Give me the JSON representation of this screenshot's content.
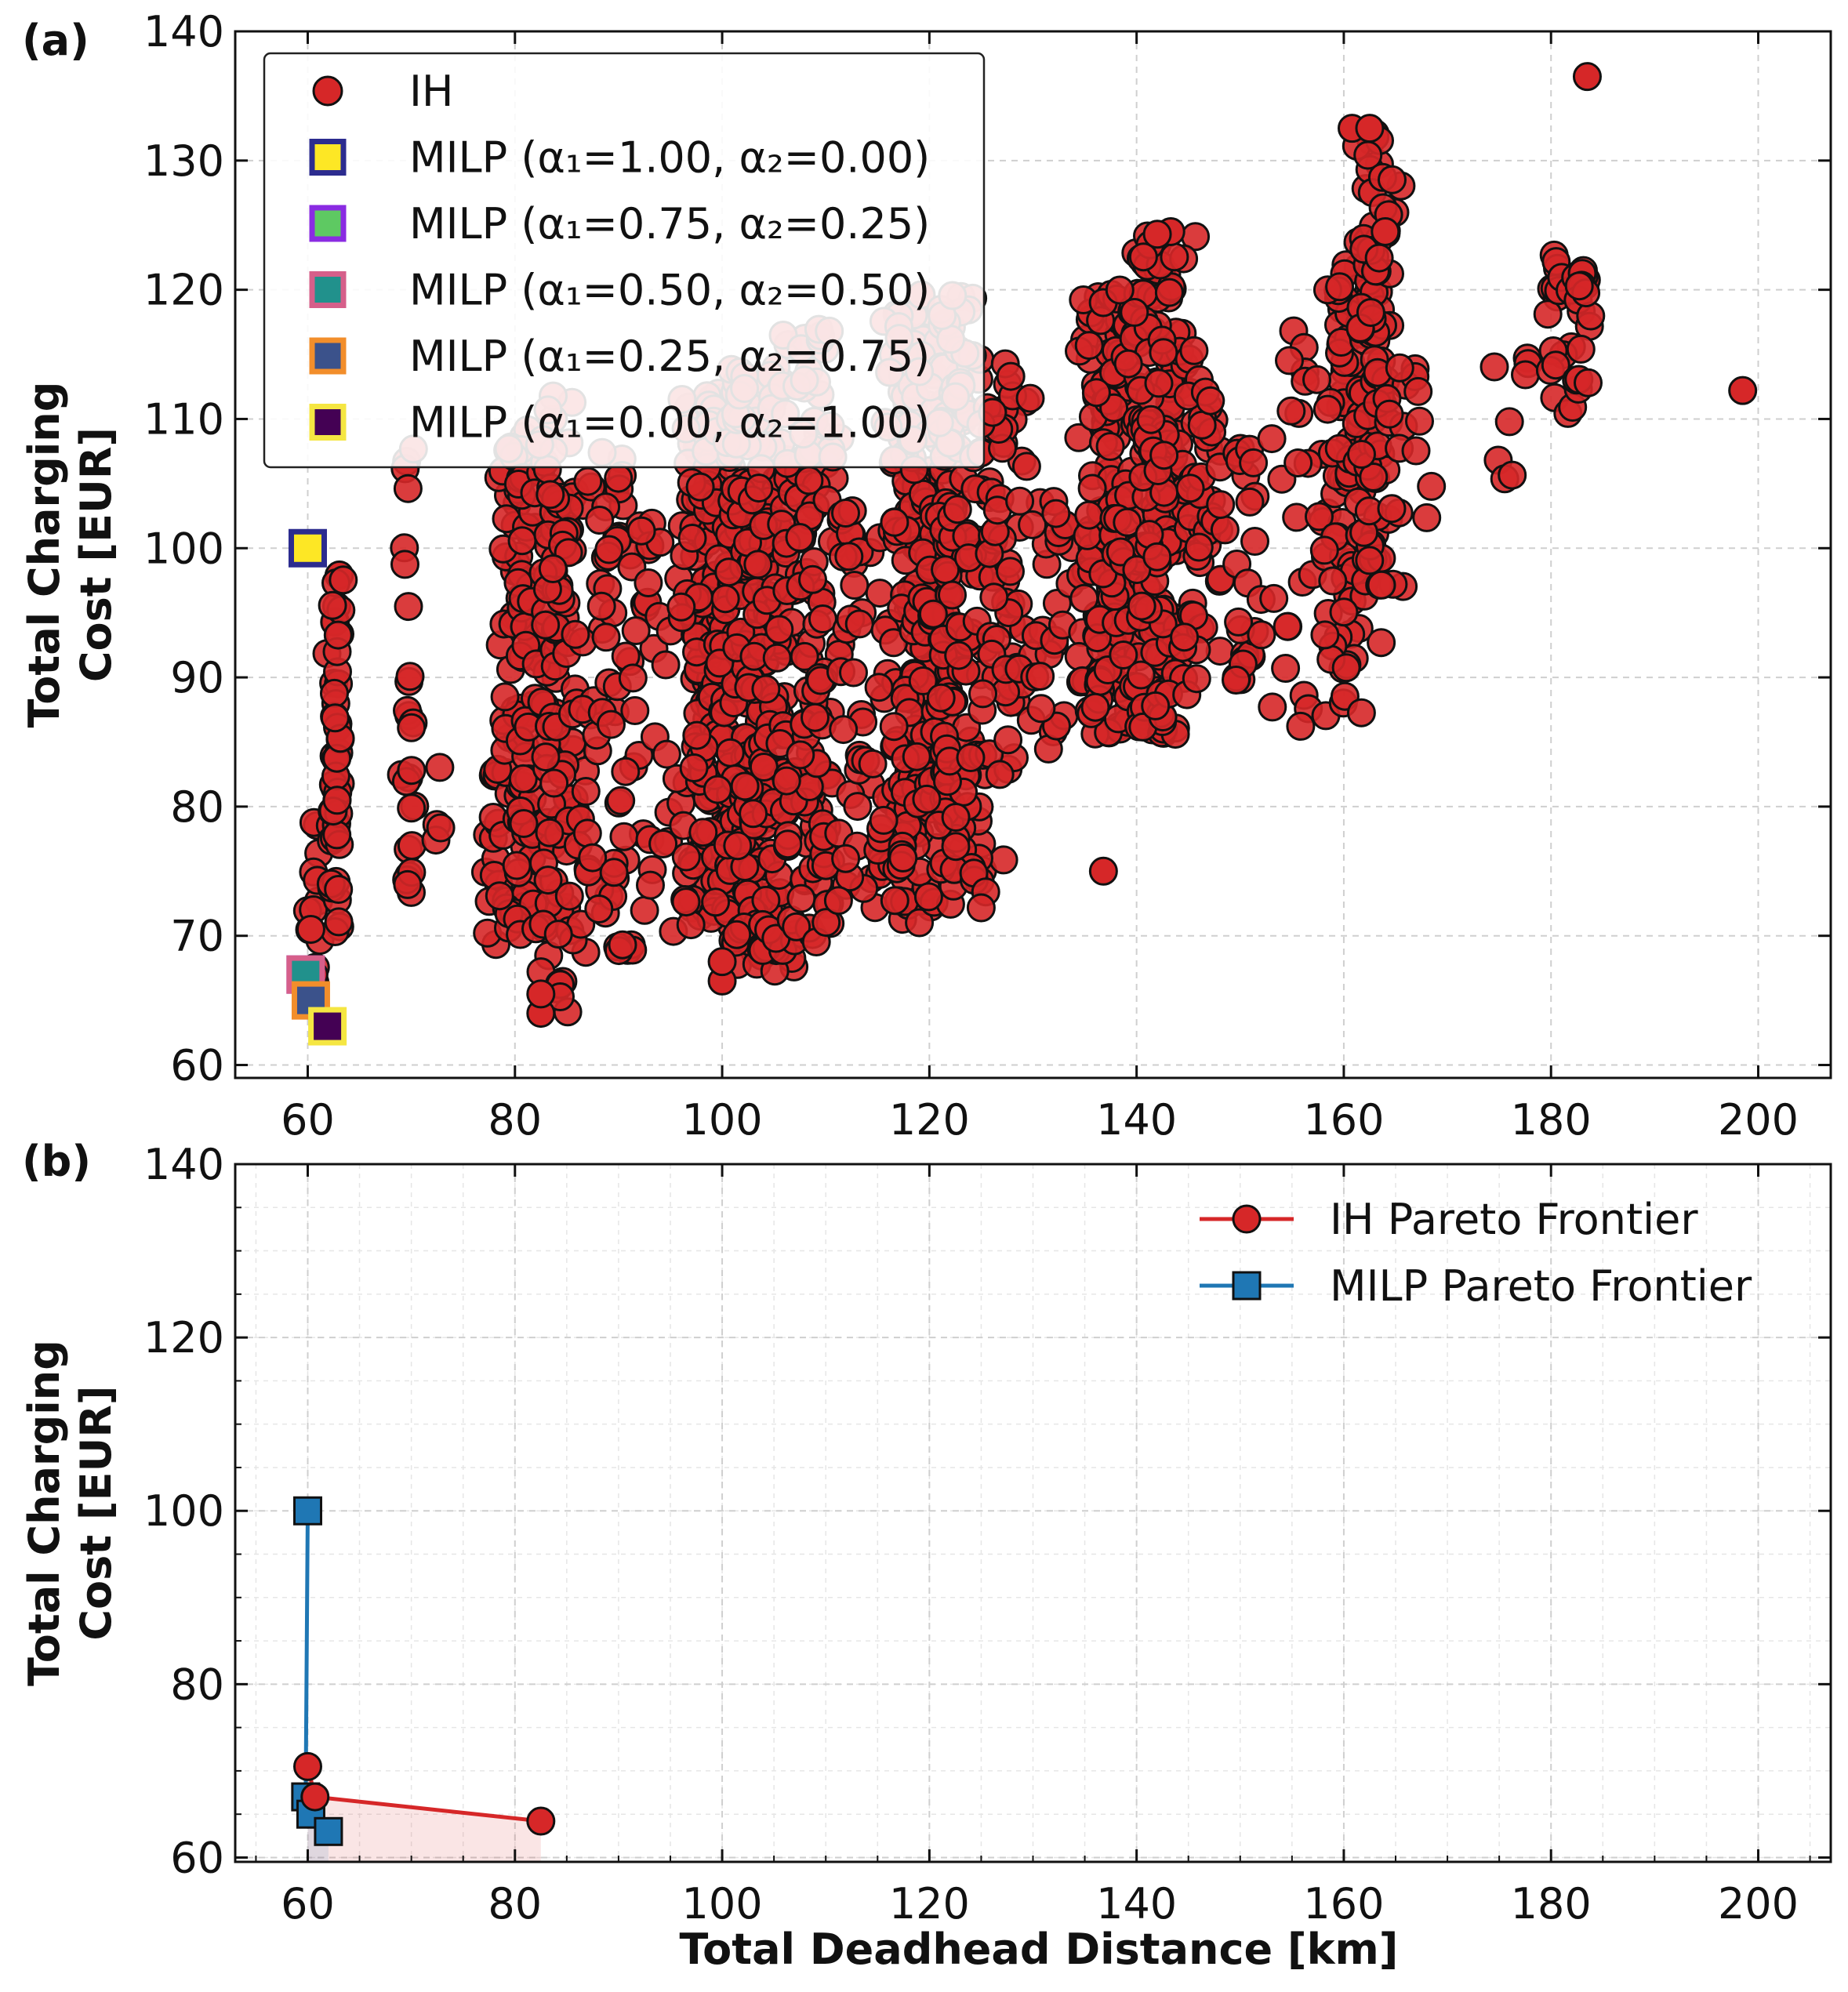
{
  "chart_data": [
    {
      "panel_label": "(a)",
      "type": "scatter",
      "xlabel": "",
      "ylabel": "Total Charging\nCost [EUR]",
      "xlim": [
        53,
        207
      ],
      "ylim": [
        59,
        140
      ],
      "xticks": [
        60,
        80,
        100,
        120,
        140,
        160,
        180,
        200
      ],
      "yticks": [
        60,
        70,
        80,
        90,
        100,
        110,
        120,
        130,
        140
      ],
      "legend_position": "top-left",
      "legend": [
        {
          "name": "IH",
          "marker": "circle",
          "fill": "#d62728",
          "edge": "#111111"
        },
        {
          "name": "MILP (α₁=1.00, α₂=0.00)",
          "marker": "square",
          "fill": "#fde725",
          "edge": "#2c2c8f"
        },
        {
          "name": "MILP (α₁=0.75, α₂=0.25)",
          "marker": "square",
          "fill": "#5ec962",
          "edge": "#8a2be2"
        },
        {
          "name": "MILP (α₁=0.50, α₂=0.50)",
          "marker": "square",
          "fill": "#21918c",
          "edge": "#d65f8a"
        },
        {
          "name": "MILP (α₁=0.25, α₂=0.75)",
          "marker": "square",
          "fill": "#3b528b",
          "edge": "#f28e2b"
        },
        {
          "name": "MILP (α₁=0.00, α₂=1.00)",
          "marker": "square",
          "fill": "#440154",
          "edge": "#f5e642"
        }
      ],
      "milp_points": [
        {
          "x": 60.0,
          "y": 100.0
        },
        {
          "x": 59.8,
          "y": 67.0
        },
        {
          "x": 59.8,
          "y": 67.0
        },
        {
          "x": 60.3,
          "y": 65.0
        },
        {
          "x": 61.9,
          "y": 63.0
        }
      ],
      "ih_clusters": [
        {
          "x": 60.5,
          "xs": 0.7,
          "y0": 66,
          "y1": 81,
          "n": 12
        },
        {
          "x": 62.7,
          "xs": 0.4,
          "y0": 70,
          "y1": 98,
          "n": 55
        },
        {
          "x": 69.8,
          "xs": 0.4,
          "y0": 71,
          "y1": 109,
          "n": 26
        },
        {
          "x": 72.5,
          "xs": 0.3,
          "y0": 70,
          "y1": 84,
          "n": 4
        },
        {
          "x": 78.0,
          "xs": 0.7,
          "y0": 69,
          "y1": 84,
          "n": 14
        },
        {
          "x": 80.5,
          "xs": 1.4,
          "y0": 70,
          "y1": 110,
          "n": 110
        },
        {
          "x": 84.2,
          "xs": 1.6,
          "y0": 64,
          "y1": 112,
          "n": 120
        },
        {
          "x": 89.5,
          "xs": 2.0,
          "y0": 68,
          "y1": 109,
          "n": 70
        },
        {
          "x": 94.0,
          "xs": 1.8,
          "y0": 70,
          "y1": 102,
          "n": 25
        },
        {
          "x": 98.8,
          "xs": 1.9,
          "y0": 70,
          "y1": 112,
          "n": 230
        },
        {
          "x": 103.5,
          "xs": 2.0,
          "y0": 67,
          "y1": 114,
          "n": 280
        },
        {
          "x": 108.5,
          "xs": 2.0,
          "y0": 69,
          "y1": 117,
          "n": 130
        },
        {
          "x": 113.5,
          "xs": 1.6,
          "y0": 72,
          "y1": 104,
          "n": 45
        },
        {
          "x": 118.5,
          "xs": 1.8,
          "y0": 71,
          "y1": 120,
          "n": 200
        },
        {
          "x": 122.5,
          "xs": 2.0,
          "y0": 72,
          "y1": 120,
          "n": 200
        },
        {
          "x": 127.0,
          "xs": 1.6,
          "y0": 82,
          "y1": 115,
          "n": 60
        },
        {
          "x": 131.5,
          "xs": 1.8,
          "y0": 82,
          "y1": 104,
          "n": 30
        },
        {
          "x": 137.5,
          "xs": 2.0,
          "y0": 85,
          "y1": 120,
          "n": 150
        },
        {
          "x": 142.0,
          "xs": 2.0,
          "y0": 85,
          "y1": 125,
          "n": 190
        },
        {
          "x": 146.5,
          "xs": 1.6,
          "y0": 88,
          "y1": 116,
          "n": 45
        },
        {
          "x": 151.0,
          "xs": 1.6,
          "y0": 86,
          "y1": 110,
          "n": 25
        },
        {
          "x": 155.5,
          "xs": 1.8,
          "y0": 86,
          "y1": 117,
          "n": 25
        },
        {
          "x": 160.5,
          "xs": 1.6,
          "y0": 87,
          "y1": 122,
          "n": 100
        },
        {
          "x": 163.0,
          "xs": 1.2,
          "y0": 97,
          "y1": 133,
          "n": 90
        },
        {
          "x": 166.5,
          "xs": 1.6,
          "y0": 102,
          "y1": 115,
          "n": 15
        },
        {
          "x": 176.5,
          "xs": 1.2,
          "y0": 103,
          "y1": 117,
          "n": 8
        },
        {
          "x": 181.0,
          "xs": 1.0,
          "y0": 110,
          "y1": 123,
          "n": 18
        },
        {
          "x": 183.0,
          "xs": 0.6,
          "y0": 112,
          "y1": 124,
          "n": 20
        }
      ],
      "ih_fixed_points": [
        {
          "x": 183.5,
          "y": 136.5
        },
        {
          "x": 198.5,
          "y": 112.2
        },
        {
          "x": 136.8,
          "y": 75.0
        },
        {
          "x": 82.5,
          "y": 64.0
        },
        {
          "x": 82.5,
          "y": 65.5
        },
        {
          "x": 100.0,
          "y": 66.5
        },
        {
          "x": 100.0,
          "y": 68.0
        },
        {
          "x": 160.8,
          "y": 132.5
        },
        {
          "x": 162.5,
          "y": 132.5
        },
        {
          "x": 164.0,
          "y": 124.5
        },
        {
          "x": 143.3,
          "y": 124.5
        },
        {
          "x": 142.0,
          "y": 124.3
        },
        {
          "x": 60.6,
          "y": 67.0
        },
        {
          "x": 60.3,
          "y": 70.5
        }
      ]
    },
    {
      "panel_label": "(b)",
      "type": "line",
      "xlabel": "Total Deadhead Distance [km]",
      "ylabel": "Total Charging\nCost [EUR]",
      "xlim": [
        53,
        207
      ],
      "ylim": [
        59.5,
        140
      ],
      "xticks": [
        60,
        80,
        100,
        120,
        140,
        160,
        180,
        200
      ],
      "yticks": [
        60,
        80,
        100,
        120,
        140
      ],
      "legend_position": "top-right",
      "series": [
        {
          "name": "IH Pareto Frontier",
          "marker": "circle",
          "color": "#d62728",
          "x": [
            60.0,
            60.7,
            82.5
          ],
          "y": [
            70.5,
            67.0,
            64.2
          ]
        },
        {
          "name": "MILP Pareto Frontier",
          "marker": "square",
          "color": "#1f77b4",
          "x": [
            60.0,
            59.8,
            60.3,
            62.0
          ],
          "y": [
            100.0,
            67.0,
            65.0,
            63.0
          ]
        }
      ]
    }
  ]
}
